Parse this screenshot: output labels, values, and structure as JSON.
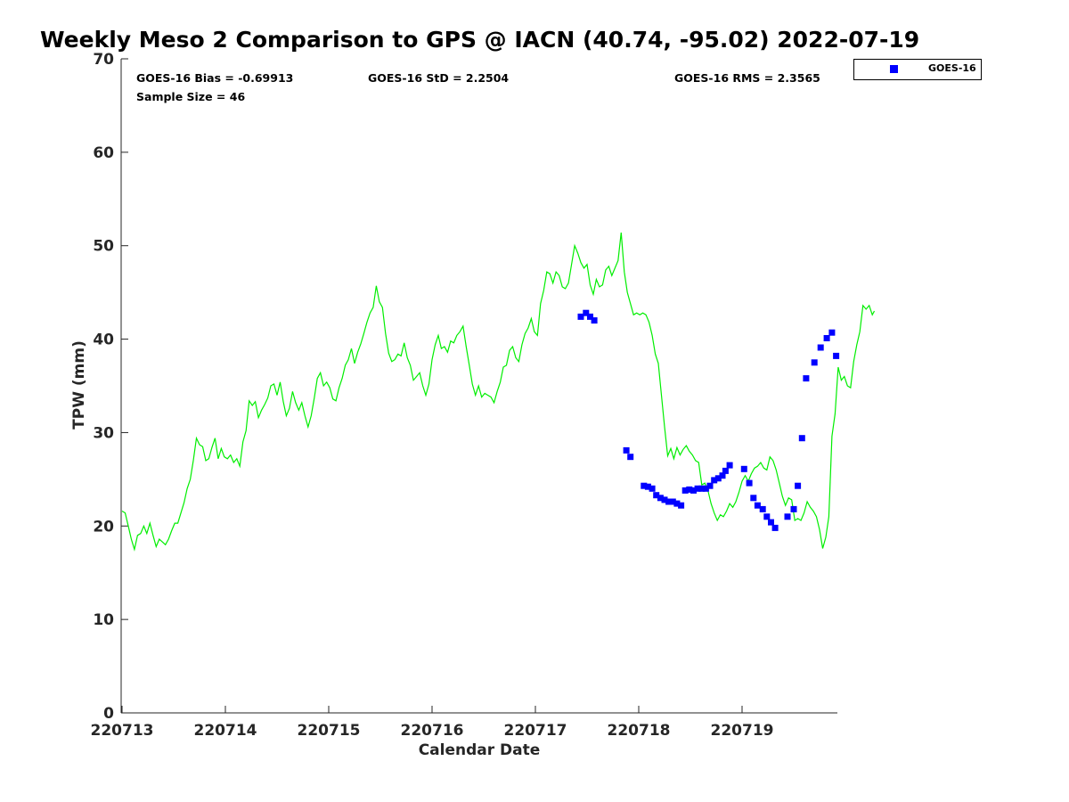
{
  "chart_data": {
    "type": "line",
    "title": "Weekly Meso 2 Comparison to GPS @ IACN (40.74, -95.02) 2022-07-19",
    "xlabel": "Calendar Date",
    "ylabel": "TPW (mm)",
    "xlim": [
      0,
      6.95
    ],
    "ylim": [
      0,
      70
    ],
    "yticks": [
      0,
      10,
      20,
      30,
      40,
      50,
      60,
      70
    ],
    "xticks": [
      {
        "x": 0,
        "label": "220713"
      },
      {
        "x": 1,
        "label": "220714"
      },
      {
        "x": 2,
        "label": "220715"
      },
      {
        "x": 3,
        "label": "220716"
      },
      {
        "x": 4,
        "label": "220717"
      },
      {
        "x": 5,
        "label": "220718"
      },
      {
        "x": 6,
        "label": "220719"
      }
    ],
    "grid": false,
    "legend": {
      "position": "outside-top-right",
      "entries": [
        "GOES-16"
      ]
    },
    "stats": {
      "bias": "GOES-16 Bias = -0.69913",
      "std": "GOES-16 StD = 2.2504",
      "rms": "GOES-16 RMS = 2.3565",
      "sample": "Sample Size = 46"
    },
    "series": [
      {
        "type": "line",
        "color": "#00ee00",
        "points": [
          [
            0.0,
            21.6
          ],
          [
            0.03,
            21.4
          ],
          [
            0.06,
            20.0
          ],
          [
            0.09,
            18.6
          ],
          [
            0.12,
            17.5
          ],
          [
            0.15,
            19.0
          ],
          [
            0.18,
            19.2
          ],
          [
            0.21,
            20.0
          ],
          [
            0.24,
            19.2
          ],
          [
            0.27,
            20.3
          ],
          [
            0.3,
            19.0
          ],
          [
            0.33,
            17.8
          ],
          [
            0.36,
            18.6
          ],
          [
            0.39,
            18.3
          ],
          [
            0.42,
            18.0
          ],
          [
            0.45,
            18.6
          ],
          [
            0.48,
            19.5
          ],
          [
            0.51,
            20.3
          ],
          [
            0.54,
            20.3
          ],
          [
            0.57,
            21.4
          ],
          [
            0.6,
            22.5
          ],
          [
            0.63,
            24.0
          ],
          [
            0.66,
            25.0
          ],
          [
            0.69,
            27.0
          ],
          [
            0.72,
            29.4
          ],
          [
            0.75,
            28.7
          ],
          [
            0.78,
            28.5
          ],
          [
            0.81,
            27.0
          ],
          [
            0.84,
            27.2
          ],
          [
            0.87,
            28.4
          ],
          [
            0.9,
            29.4
          ],
          [
            0.93,
            27.2
          ],
          [
            0.96,
            28.3
          ],
          [
            0.99,
            27.4
          ],
          [
            1.02,
            27.2
          ],
          [
            1.05,
            27.6
          ],
          [
            1.08,
            26.8
          ],
          [
            1.11,
            27.2
          ],
          [
            1.14,
            26.4
          ],
          [
            1.17,
            29.0
          ],
          [
            1.2,
            30.2
          ],
          [
            1.23,
            33.4
          ],
          [
            1.26,
            32.9
          ],
          [
            1.29,
            33.3
          ],
          [
            1.32,
            31.6
          ],
          [
            1.35,
            32.4
          ],
          [
            1.38,
            33.0
          ],
          [
            1.41,
            33.7
          ],
          [
            1.44,
            35.0
          ],
          [
            1.47,
            35.2
          ],
          [
            1.5,
            34.0
          ],
          [
            1.53,
            35.4
          ],
          [
            1.56,
            33.3
          ],
          [
            1.59,
            31.8
          ],
          [
            1.62,
            32.6
          ],
          [
            1.65,
            34.4
          ],
          [
            1.68,
            33.2
          ],
          [
            1.71,
            32.4
          ],
          [
            1.74,
            33.2
          ],
          [
            1.77,
            31.8
          ],
          [
            1.8,
            30.6
          ],
          [
            1.83,
            31.8
          ],
          [
            1.86,
            33.7
          ],
          [
            1.89,
            35.8
          ],
          [
            1.92,
            36.4
          ],
          [
            1.95,
            35.0
          ],
          [
            1.98,
            35.4
          ],
          [
            2.01,
            34.8
          ],
          [
            2.04,
            33.6
          ],
          [
            2.07,
            33.4
          ],
          [
            2.1,
            34.8
          ],
          [
            2.13,
            35.8
          ],
          [
            2.16,
            37.2
          ],
          [
            2.19,
            37.8
          ],
          [
            2.22,
            39.0
          ],
          [
            2.25,
            37.4
          ],
          [
            2.28,
            38.6
          ],
          [
            2.31,
            39.5
          ],
          [
            2.34,
            40.6
          ],
          [
            2.37,
            41.8
          ],
          [
            2.4,
            42.8
          ],
          [
            2.43,
            43.4
          ],
          [
            2.46,
            45.7
          ],
          [
            2.49,
            44.0
          ],
          [
            2.52,
            43.4
          ],
          [
            2.55,
            40.6
          ],
          [
            2.58,
            38.5
          ],
          [
            2.61,
            37.6
          ],
          [
            2.64,
            37.8
          ],
          [
            2.67,
            38.4
          ],
          [
            2.7,
            38.2
          ],
          [
            2.73,
            39.6
          ],
          [
            2.76,
            38.0
          ],
          [
            2.79,
            37.2
          ],
          [
            2.82,
            35.6
          ],
          [
            2.85,
            36.0
          ],
          [
            2.88,
            36.4
          ],
          [
            2.91,
            35.0
          ],
          [
            2.94,
            34.0
          ],
          [
            2.97,
            35.2
          ],
          [
            3.0,
            37.8
          ],
          [
            3.03,
            39.4
          ],
          [
            3.06,
            40.4
          ],
          [
            3.09,
            39.0
          ],
          [
            3.12,
            39.2
          ],
          [
            3.15,
            38.6
          ],
          [
            3.18,
            39.8
          ],
          [
            3.21,
            39.6
          ],
          [
            3.24,
            40.4
          ],
          [
            3.27,
            40.8
          ],
          [
            3.3,
            41.4
          ],
          [
            3.33,
            39.2
          ],
          [
            3.36,
            37.2
          ],
          [
            3.39,
            35.2
          ],
          [
            3.42,
            34.0
          ],
          [
            3.45,
            35.0
          ],
          [
            3.48,
            33.8
          ],
          [
            3.51,
            34.2
          ],
          [
            3.54,
            34.0
          ],
          [
            3.57,
            33.8
          ],
          [
            3.6,
            33.2
          ],
          [
            3.63,
            34.4
          ],
          [
            3.66,
            35.4
          ],
          [
            3.69,
            37.0
          ],
          [
            3.72,
            37.2
          ],
          [
            3.75,
            38.8
          ],
          [
            3.78,
            39.2
          ],
          [
            3.81,
            38.0
          ],
          [
            3.84,
            37.6
          ],
          [
            3.87,
            39.4
          ],
          [
            3.9,
            40.6
          ],
          [
            3.93,
            41.2
          ],
          [
            3.96,
            42.2
          ],
          [
            3.99,
            40.8
          ],
          [
            4.02,
            40.4
          ],
          [
            4.05,
            43.8
          ],
          [
            4.08,
            45.2
          ],
          [
            4.11,
            47.2
          ],
          [
            4.14,
            47.0
          ],
          [
            4.17,
            46.0
          ],
          [
            4.2,
            47.2
          ],
          [
            4.23,
            46.8
          ],
          [
            4.26,
            45.6
          ],
          [
            4.29,
            45.4
          ],
          [
            4.32,
            46.0
          ],
          [
            4.35,
            48.0
          ],
          [
            4.38,
            50.0
          ],
          [
            4.41,
            49.2
          ],
          [
            4.44,
            48.2
          ],
          [
            4.47,
            47.6
          ],
          [
            4.5,
            48.0
          ],
          [
            4.53,
            45.8
          ],
          [
            4.56,
            44.8
          ],
          [
            4.59,
            46.4
          ],
          [
            4.62,
            45.6
          ],
          [
            4.65,
            45.8
          ],
          [
            4.68,
            47.4
          ],
          [
            4.71,
            47.8
          ],
          [
            4.74,
            46.8
          ],
          [
            4.77,
            47.6
          ],
          [
            4.8,
            48.4
          ],
          [
            4.83,
            51.4
          ],
          [
            4.86,
            47.2
          ],
          [
            4.89,
            45.0
          ],
          [
            4.92,
            43.8
          ],
          [
            4.95,
            42.6
          ],
          [
            4.98,
            42.8
          ],
          [
            5.01,
            42.6
          ],
          [
            5.04,
            42.8
          ],
          [
            5.07,
            42.6
          ],
          [
            5.1,
            41.8
          ],
          [
            5.13,
            40.4
          ],
          [
            5.16,
            38.4
          ],
          [
            5.19,
            37.4
          ],
          [
            5.22,
            34.0
          ],
          [
            5.25,
            30.6
          ],
          [
            5.28,
            27.5
          ],
          [
            5.31,
            28.3
          ],
          [
            5.34,
            27.2
          ],
          [
            5.37,
            28.4
          ],
          [
            5.4,
            27.6
          ],
          [
            5.43,
            28.2
          ],
          [
            5.46,
            28.6
          ],
          [
            5.49,
            28.0
          ],
          [
            5.52,
            27.6
          ],
          [
            5.55,
            27.0
          ],
          [
            5.58,
            26.8
          ],
          [
            5.61,
            24.4
          ],
          [
            5.64,
            24.6
          ],
          [
            5.67,
            23.8
          ],
          [
            5.7,
            22.4
          ],
          [
            5.73,
            21.4
          ],
          [
            5.76,
            20.6
          ],
          [
            5.79,
            21.2
          ],
          [
            5.82,
            21.0
          ],
          [
            5.85,
            21.6
          ],
          [
            5.88,
            22.4
          ],
          [
            5.91,
            22.0
          ],
          [
            5.94,
            22.6
          ],
          [
            5.97,
            23.6
          ],
          [
            6.0,
            24.8
          ],
          [
            6.03,
            25.4
          ],
          [
            6.06,
            24.8
          ],
          [
            6.09,
            25.6
          ],
          [
            6.12,
            26.2
          ],
          [
            6.15,
            26.4
          ],
          [
            6.18,
            26.8
          ],
          [
            6.21,
            26.2
          ],
          [
            6.24,
            26.0
          ],
          [
            6.27,
            27.4
          ],
          [
            6.3,
            27.0
          ],
          [
            6.33,
            26.0
          ],
          [
            6.36,
            24.6
          ],
          [
            6.39,
            23.2
          ],
          [
            6.42,
            22.2
          ],
          [
            6.45,
            23.0
          ],
          [
            6.48,
            22.8
          ],
          [
            6.51,
            20.6
          ],
          [
            6.54,
            20.8
          ],
          [
            6.57,
            20.6
          ],
          [
            6.6,
            21.4
          ],
          [
            6.63,
            22.6
          ],
          [
            6.66,
            22.0
          ],
          [
            6.69,
            21.6
          ],
          [
            6.72,
            21.0
          ],
          [
            6.75,
            19.6
          ],
          [
            6.78,
            17.6
          ],
          [
            6.81,
            18.8
          ],
          [
            6.84,
            21.0
          ],
          [
            6.87,
            29.6
          ],
          [
            6.9,
            32.0
          ],
          [
            6.93,
            37.0
          ],
          [
            6.96,
            35.6
          ],
          [
            6.99,
            36.0
          ],
          [
            7.02,
            35.0
          ],
          [
            7.05,
            34.8
          ],
          [
            7.08,
            37.6
          ],
          [
            7.11,
            39.4
          ],
          [
            7.14,
            40.8
          ],
          [
            7.17,
            43.6
          ],
          [
            7.2,
            43.2
          ],
          [
            7.23,
            43.6
          ],
          [
            7.26,
            42.6
          ],
          [
            7.28,
            43.0
          ]
        ]
      },
      {
        "name": "GOES-16",
        "type": "scatter",
        "color": "#0000ff",
        "points": [
          [
            4.44,
            42.4
          ],
          [
            4.49,
            42.8
          ],
          [
            4.53,
            42.4
          ],
          [
            4.57,
            42.0
          ],
          [
            4.88,
            28.1
          ],
          [
            4.92,
            27.4
          ],
          [
            5.05,
            24.3
          ],
          [
            5.09,
            24.2
          ],
          [
            5.13,
            24.0
          ],
          [
            5.17,
            23.3
          ],
          [
            5.21,
            23.0
          ],
          [
            5.25,
            22.8
          ],
          [
            5.29,
            22.6
          ],
          [
            5.33,
            22.6
          ],
          [
            5.37,
            22.4
          ],
          [
            5.41,
            22.2
          ],
          [
            5.45,
            23.8
          ],
          [
            5.49,
            23.9
          ],
          [
            5.53,
            23.8
          ],
          [
            5.57,
            24.0
          ],
          [
            5.61,
            24.0
          ],
          [
            5.65,
            24.0
          ],
          [
            5.69,
            24.3
          ],
          [
            5.73,
            24.9
          ],
          [
            5.77,
            25.1
          ],
          [
            5.81,
            25.4
          ],
          [
            5.84,
            25.9
          ],
          [
            5.88,
            26.5
          ],
          [
            6.02,
            26.1
          ],
          [
            6.07,
            24.6
          ],
          [
            6.11,
            23.0
          ],
          [
            6.15,
            22.2
          ],
          [
            6.2,
            21.8
          ],
          [
            6.24,
            21.0
          ],
          [
            6.28,
            20.4
          ],
          [
            6.32,
            19.8
          ],
          [
            6.44,
            21.0
          ],
          [
            6.5,
            21.8
          ],
          [
            6.54,
            24.3
          ],
          [
            6.58,
            29.4
          ],
          [
            6.62,
            35.8
          ],
          [
            6.7,
            37.5
          ],
          [
            6.76,
            39.1
          ],
          [
            6.82,
            40.1
          ],
          [
            6.87,
            40.7
          ],
          [
            6.91,
            38.2
          ]
        ]
      }
    ]
  }
}
